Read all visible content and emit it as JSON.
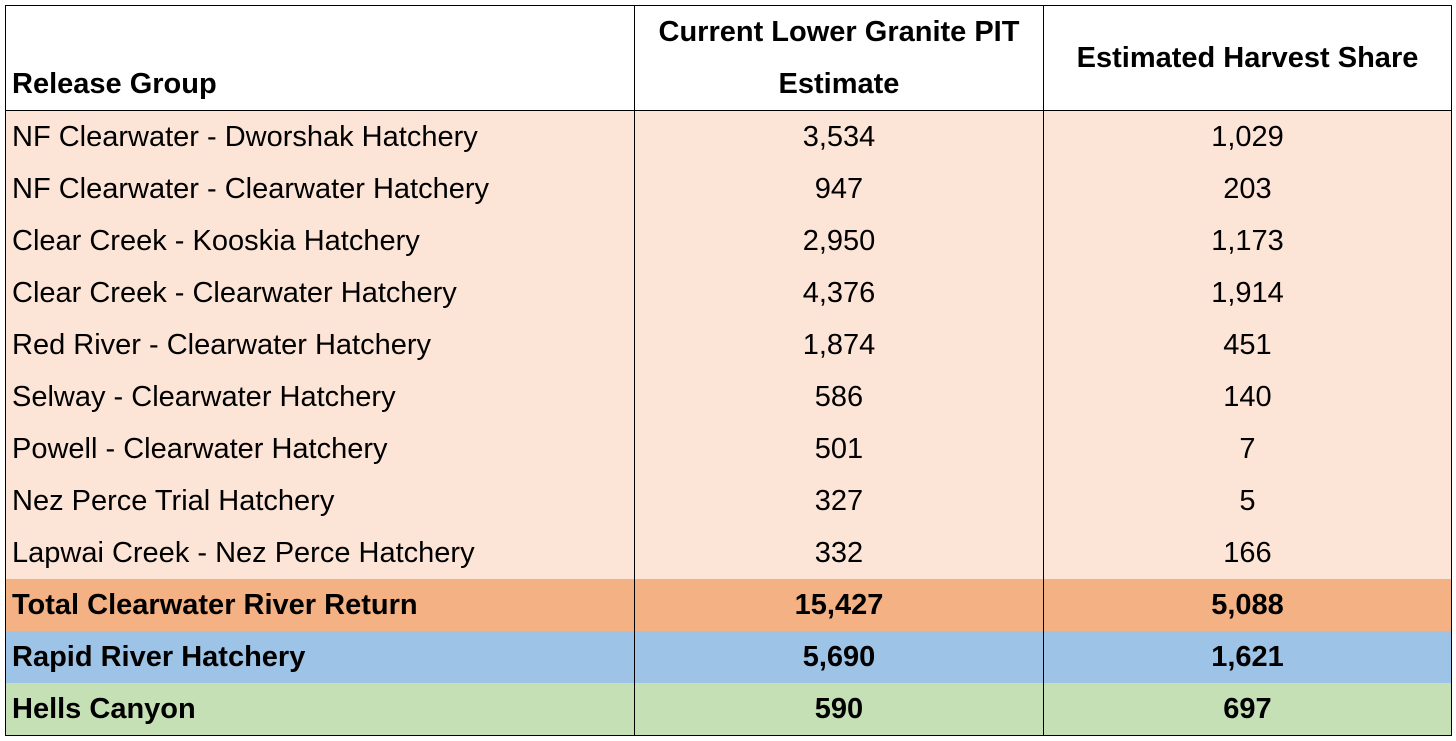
{
  "table": {
    "header": [
      "Release Group",
      "Current Lower Granite PIT Estimate",
      "Estimated Harvest Share"
    ],
    "rows": [
      [
        "NF Clearwater - Dworshak Hatchery",
        "3,534",
        "1,029"
      ],
      [
        "NF Clearwater - Clearwater Hatchery",
        "947",
        "203"
      ],
      [
        "Clear Creek - Kooskia Hatchery",
        "2,950",
        "1,173"
      ],
      [
        "Clear Creek - Clearwater Hatchery",
        "4,376",
        "1,914"
      ],
      [
        "Red River - Clearwater Hatchery",
        "1,874",
        "451"
      ],
      [
        "Selway - Clearwater Hatchery",
        "586",
        "140"
      ],
      [
        "Powell - Clearwater Hatchery",
        "501",
        "7"
      ],
      [
        "Nez Perce Trial Hatchery",
        "327",
        "5"
      ],
      [
        "Lapwai Creek - Nez Perce Hatchery",
        "332",
        "166"
      ],
      [
        "Total Clearwater River Return",
        "15,427",
        "5,088"
      ],
      [
        "Rapid River Hatchery",
        "5,690",
        "1,621"
      ],
      [
        "Hells Canyon",
        "590",
        "697"
      ]
    ]
  }
}
